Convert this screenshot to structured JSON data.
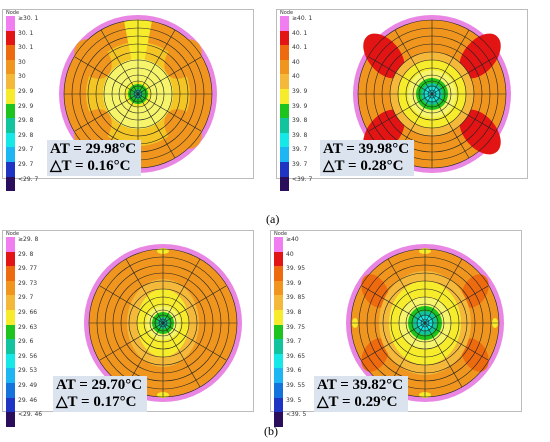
{
  "colors": {
    "c_top": "#f07ef0",
    "c_red": "#e21414",
    "c_dorange": "#ee6a0e",
    "c_orange": "#f0961e",
    "c_lorange": "#f4b83a",
    "c_yellow": "#f6ec2c",
    "c_lyellow": "#f5f46a",
    "c_green": "#1ec41e",
    "c_teal": "#12c49e",
    "c_cyan": "#16e8e8",
    "c_lblue": "#1eb6f2",
    "c_blue": "#1474dc",
    "c_dblue": "#2034c4",
    "c_navy": "#2a0e5c",
    "rim": "#e986e4"
  },
  "panels": [
    {
      "legend_title": "Node",
      "legend": [
        "≥30. 1",
        "30. 1",
        "30. 1",
        "30",
        "30",
        "29. 9",
        "29. 9",
        "29. 8",
        "29. 8",
        "29. 7",
        "29. 7",
        "<29. 7"
      ],
      "at_line": "AT = 29.98°C",
      "dt_line": "△T = 0.16°C"
    },
    {
      "legend_title": "Node",
      "legend": [
        "≥40. 1",
        "40. 1",
        "40. 1",
        "40",
        "40",
        "39. 9",
        "39. 9",
        "39. 8",
        "39. 8",
        "39. 7",
        "39. 7",
        "<39. 7"
      ],
      "at_line": "AT = 39.98°C",
      "dt_line": "△T = 0.28°C"
    },
    {
      "legend_title": "Node",
      "legend": [
        "≥29. 8",
        "29. 8",
        "29. 77",
        "29. 73",
        "29. 7",
        "29. 66",
        "29. 63",
        "29. 6",
        "29. 56",
        "29. 53",
        "29. 49",
        "29. 46",
        "<29. 46"
      ],
      "at_line": "AT = 29.70°C",
      "dt_line": "△T = 0.17°C"
    },
    {
      "legend_title": "Node",
      "legend": [
        "≥40",
        "40",
        "39. 95",
        "39. 9",
        "39. 85",
        "39. 8",
        "39. 75",
        "39. 7",
        "39. 65",
        "39. 6",
        "39. 55",
        "39. 5",
        "<39. 5"
      ],
      "at_line": "AT = 39.82°C",
      "dt_line": "△T = 0.29°C"
    }
  ],
  "captions": {
    "a": "(a)",
    "b": "(b)"
  }
}
